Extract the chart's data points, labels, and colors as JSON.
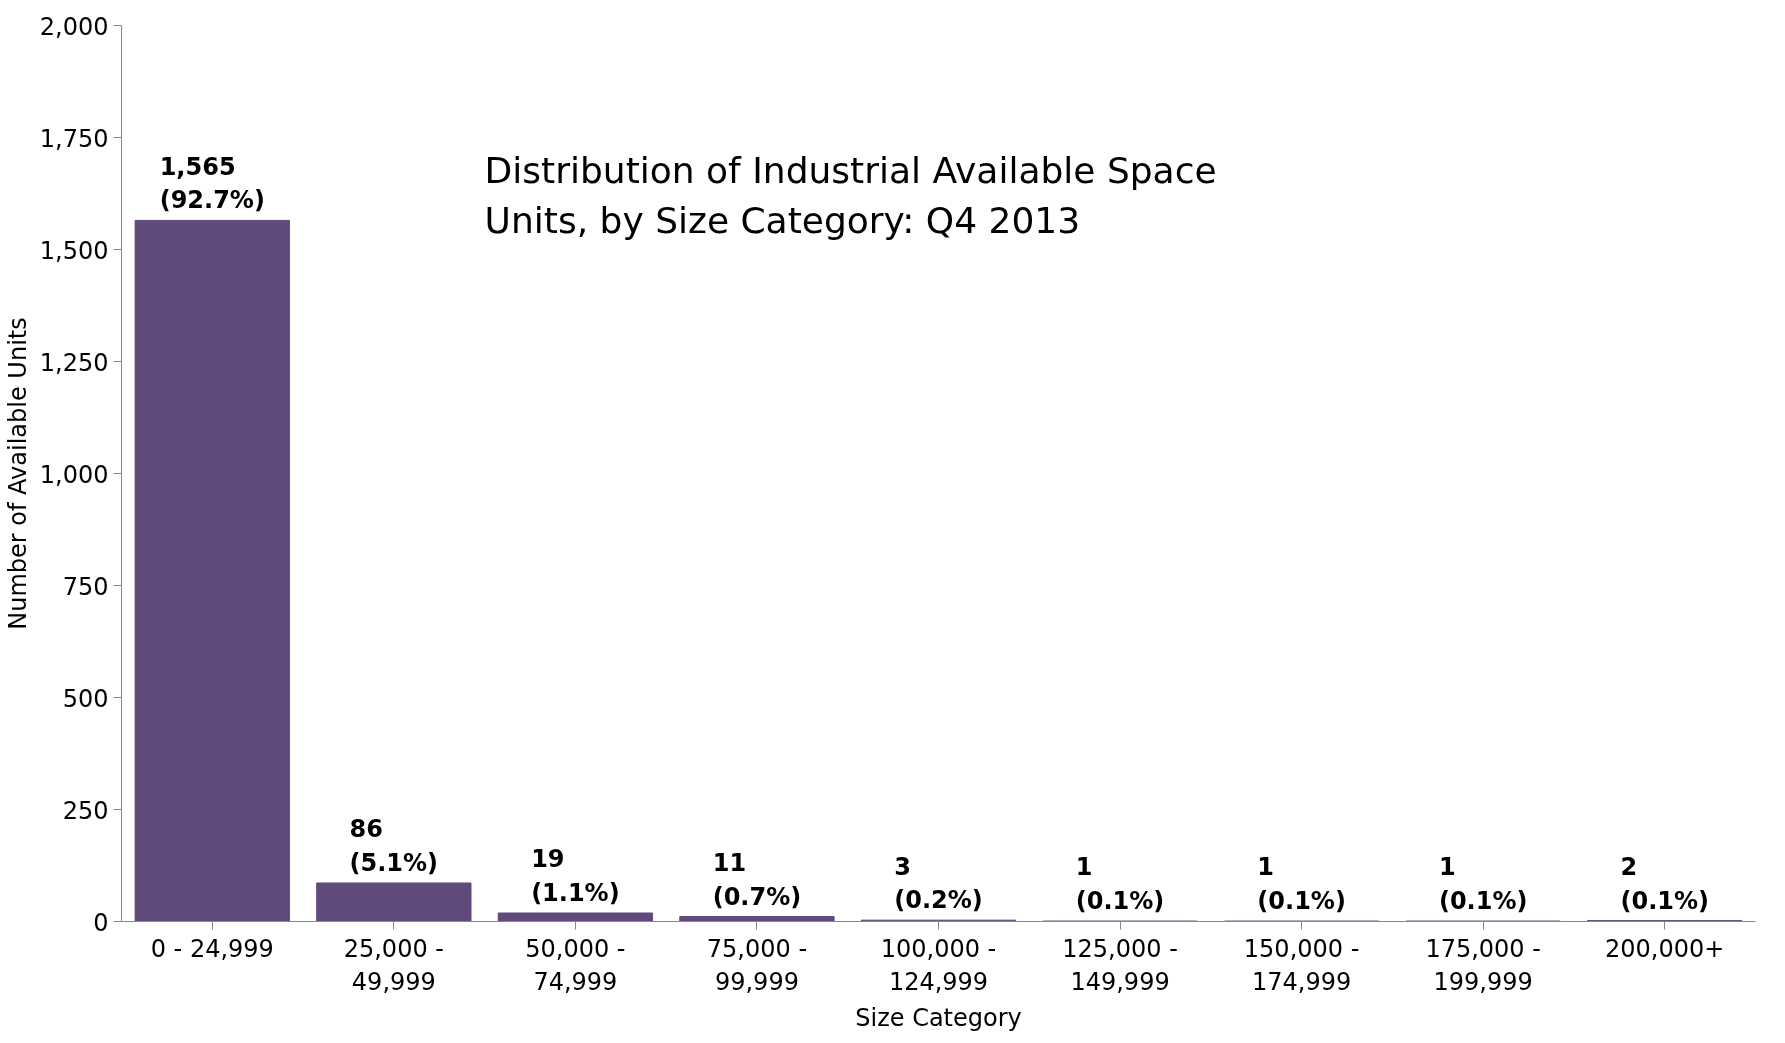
{
  "chart_data": {
    "type": "bar",
    "title": "Distribution of Industrial Available Space Units, by Size Category: Q4 2013",
    "xlabel": "Size Category",
    "ylabel": "Number of Available Units",
    "categories": [
      "0 - 24,999",
      "25,000 - 49,999",
      "50,000 - 74,999",
      "75,000 - 99,999",
      "100,000 - 124,999",
      "125,000 - 149,999",
      "150,000 - 174,999",
      "175,000 - 199,999",
      "200,000+"
    ],
    "values": [
      1565,
      86,
      19,
      11,
      3,
      1,
      1,
      1,
      2
    ],
    "value_labels": [
      "1,565 (92.7%)",
      "86 (5.1%)",
      "19 (1.1%)",
      "11 (0.7%)",
      "3 (0.2%)",
      "1 (0.1%)",
      "1 (0.1%)",
      "1 (0.1%)",
      "2 (0.1%)"
    ],
    "color": "#604a7b",
    "ylim": [
      0,
      2000
    ],
    "yticks": [
      0,
      250,
      500,
      750,
      {
        "value": 1000,
        "label": "1,000"
      },
      {
        "value": 1250,
        "label": "1,250"
      },
      {
        "value": 1500,
        "label": "1,500"
      },
      {
        "value": 1750,
        "label": "1,750"
      },
      {
        "value": 2000,
        "label": "2,000"
      }
    ],
    "grid": false
  }
}
